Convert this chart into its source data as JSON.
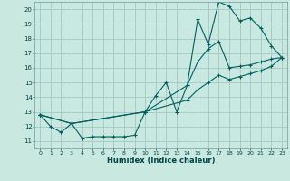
{
  "title": "",
  "xlabel": "Humidex (Indice chaleur)",
  "bg_color": "#c8e8e0",
  "grid_color": "#a8ccc8",
  "line_color": "#006060",
  "xlim": [
    -0.5,
    23.5
  ],
  "ylim": [
    10.5,
    20.5
  ],
  "xticks": [
    0,
    1,
    2,
    3,
    4,
    5,
    6,
    7,
    8,
    9,
    10,
    11,
    12,
    13,
    14,
    15,
    16,
    17,
    18,
    19,
    20,
    21,
    22,
    23
  ],
  "yticks": [
    11,
    12,
    13,
    14,
    15,
    16,
    17,
    18,
    19,
    20
  ],
  "line1_x": [
    0,
    1,
    2,
    3,
    4,
    5,
    6,
    7,
    8,
    9,
    10,
    11,
    12,
    13,
    14,
    15,
    16,
    17,
    18,
    19,
    20,
    21,
    22,
    23
  ],
  "line1_y": [
    12.8,
    12.0,
    11.6,
    12.2,
    11.2,
    11.3,
    11.3,
    11.3,
    11.3,
    11.4,
    13.0,
    14.1,
    15.0,
    13.0,
    14.8,
    19.3,
    17.6,
    20.5,
    20.2,
    19.2,
    19.4,
    18.7,
    17.5,
    16.7
  ],
  "line2_x": [
    0,
    3,
    10,
    14,
    15,
    16,
    17,
    18,
    19,
    20,
    21,
    22,
    23
  ],
  "line2_y": [
    12.8,
    12.2,
    13.0,
    14.8,
    16.4,
    17.3,
    17.8,
    16.0,
    16.1,
    16.2,
    16.4,
    16.6,
    16.7
  ],
  "line3_x": [
    0,
    3,
    10,
    14,
    15,
    16,
    17,
    18,
    19,
    20,
    21,
    22,
    23
  ],
  "line3_y": [
    12.8,
    12.2,
    13.0,
    13.8,
    14.5,
    15.0,
    15.5,
    15.2,
    15.4,
    15.6,
    15.8,
    16.1,
    16.7
  ]
}
